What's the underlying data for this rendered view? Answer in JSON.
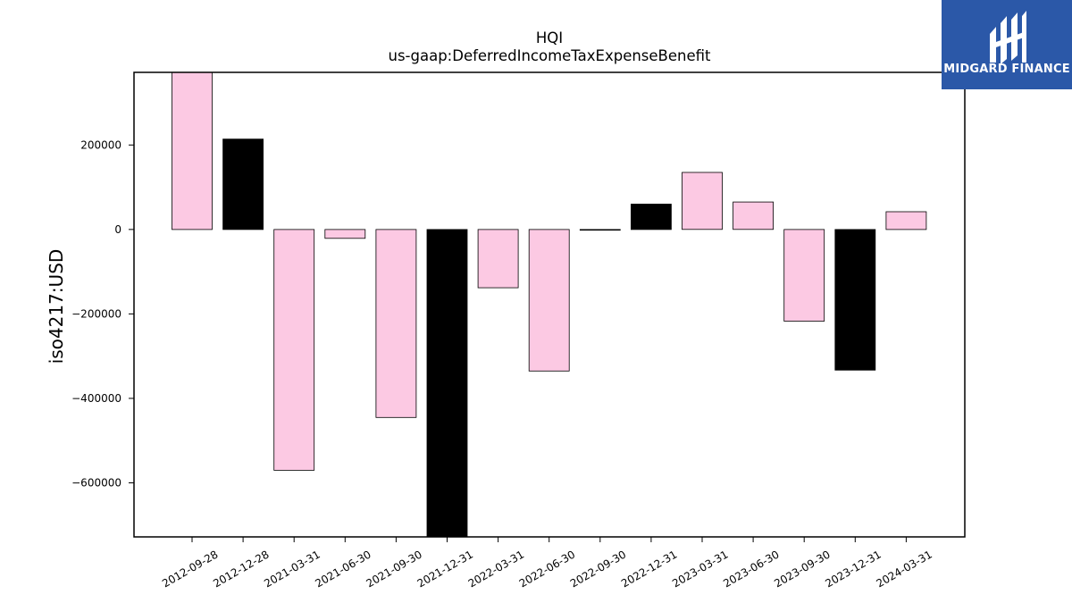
{
  "chart_data": {
    "type": "bar",
    "title": "HQI",
    "subtitle": "us-gaap:DeferredIncomeTaxExpenseBenefit",
    "xlabel": "",
    "ylabel": "iso4217:USD",
    "categories": [
      "2012-09-28",
      "2012-12-28",
      "2021-03-31",
      "2021-06-30",
      "2021-09-30",
      "2021-12-31",
      "2022-03-31",
      "2022-06-30",
      "2022-09-30",
      "2022-12-31",
      "2023-03-31",
      "2023-06-30",
      "2023-09-30",
      "2023-12-31",
      "2024-03-31"
    ],
    "values": [
      372000,
      214000,
      -570000,
      -21000,
      -445000,
      -735000,
      -138000,
      -335000,
      -1000,
      60000,
      135000,
      65000,
      -217000,
      -333000,
      42000
    ],
    "bar_colors": [
      "#fcc9e3",
      "#000000",
      "#fcc9e3",
      "#fcc9e3",
      "#fcc9e3",
      "#000000",
      "#fcc9e3",
      "#fcc9e3",
      "#fcc9e3",
      "#000000",
      "#fcc9e3",
      "#fcc9e3",
      "#fcc9e3",
      "#000000",
      "#fcc9e3"
    ],
    "ylim": [
      -728000,
      372000
    ],
    "yticks": [
      200000,
      0,
      -200000,
      -400000,
      -600000
    ],
    "ytick_labels": [
      "200000",
      "0",
      "−200000",
      "−400000",
      "−600000"
    ],
    "grid": false,
    "legend": "none"
  },
  "logo": {
    "text": "MIDGARD FINANCE",
    "background": "#2b58a8"
  }
}
